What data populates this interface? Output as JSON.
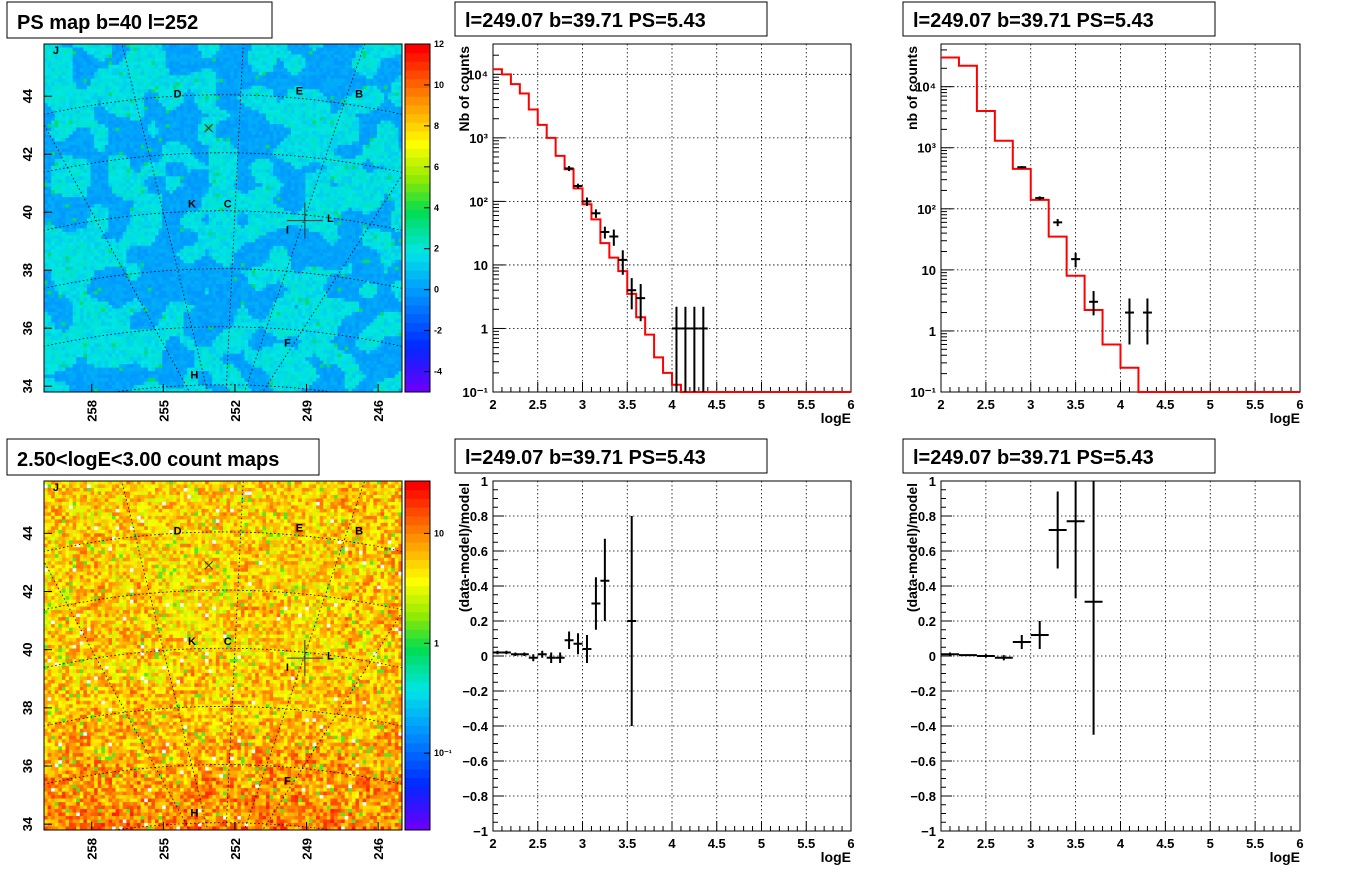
{
  "chart_data": [
    {
      "type": "heatmap",
      "title": "PS map b=40 l=252",
      "xlabel": "",
      "ylabel": "",
      "x_ticks": [
        "258",
        "255",
        "252",
        "249",
        "246"
      ],
      "y_ticks": [
        "34",
        "36",
        "38",
        "40",
        "42",
        "44"
      ],
      "xlim": [
        260,
        245
      ],
      "ylim": [
        33.8,
        45.8
      ],
      "colorbar": {
        "ticks": [
          "-4",
          "-2",
          "0",
          "2",
          "4",
          "6",
          "8",
          "10",
          "12"
        ],
        "range": [
          -5,
          12
        ],
        "scale": "linear"
      },
      "annotations": [
        {
          "label": "J",
          "l": 259.5,
          "b": 45.6
        },
        {
          "label": "D",
          "l": 254.4,
          "b": 44.1
        },
        {
          "label": "E",
          "l": 249.3,
          "b": 44.2
        },
        {
          "label": "B",
          "l": 246.8,
          "b": 44.1
        },
        {
          "label": "K",
          "l": 253.8,
          "b": 40.3
        },
        {
          "label": "C",
          "l": 252.3,
          "b": 40.3
        },
        {
          "label": "I",
          "l": 249.8,
          "b": 39.4
        },
        {
          "label": "L",
          "l": 248.0,
          "b": 39.8
        },
        {
          "label": "F",
          "l": 249.8,
          "b": 35.5
        },
        {
          "label": "H",
          "l": 253.7,
          "b": 34.4
        }
      ],
      "markers": [
        {
          "l": 253.1,
          "b": 42.9
        },
        {
          "l": 249.07,
          "b": 39.71
        }
      ]
    },
    {
      "type": "line",
      "title": "l=249.07 b=39.71 PS=5.43",
      "xlabel": "logE",
      "ylabel": "Nb of counts",
      "xlim": [
        2,
        6
      ],
      "ylim": [
        0.1,
        30000
      ],
      "yscale": "log",
      "grid": true,
      "x_ticks": [
        "2",
        "2.5",
        "3",
        "3.5",
        "4",
        "4.5",
        "5",
        "5.5",
        "6"
      ],
      "y_ticks": [
        "10⁻¹",
        "1",
        "10",
        "10²",
        "10³",
        "10⁴"
      ],
      "series": [
        {
          "style": "step",
          "color": "#ff0000",
          "edges": [
            2,
            2.1,
            2.2,
            2.3,
            2.4,
            2.5,
            2.6,
            2.7,
            2.8,
            2.9,
            3.0,
            3.1,
            3.2,
            3.3,
            3.4,
            3.5,
            3.6,
            3.7,
            3.8,
            3.9,
            4.0,
            4.1,
            4.2,
            4.3,
            4.4,
            6.0
          ],
          "values": [
            12000,
            10000,
            7000,
            5000,
            2800,
            1600,
            1000,
            520,
            320,
            160,
            90,
            52,
            22,
            13,
            8,
            3.5,
            1.5,
            0.8,
            0.35,
            0.2,
            0.13,
            0.1,
            0.1,
            0.1,
            0.1
          ]
        },
        {
          "style": "errorbar",
          "color": "#000000",
          "x": [
            2.85,
            2.95,
            3.05,
            3.15,
            3.25,
            3.35,
            3.45,
            3.55,
            3.65,
            4.05,
            4.15,
            4.25,
            4.35
          ],
          "y": [
            330,
            175,
            100,
            65,
            33,
            28,
            12,
            4,
            3,
            1,
            1,
            1,
            1
          ],
          "ylo": [
            300,
            160,
            85,
            55,
            26,
            20,
            7,
            2,
            1.3,
            0.1,
            0.1,
            0.1,
            0.1
          ],
          "yhi": [
            360,
            190,
            115,
            75,
            40,
            36,
            17,
            6.2,
            5,
            2.2,
            2.2,
            2.2,
            2.2
          ]
        }
      ]
    },
    {
      "type": "line",
      "title": "l=249.07 b=39.71 PS=5.43",
      "xlabel": "logE",
      "ylabel": "nb of counts",
      "xlim": [
        2,
        6
      ],
      "ylim": [
        0.1,
        50000
      ],
      "yscale": "log",
      "grid": true,
      "x_ticks": [
        "2",
        "2.5",
        "3",
        "3.5",
        "4",
        "4.5",
        "5",
        "5.5",
        "6"
      ],
      "y_ticks": [
        "10⁻¹",
        "1",
        "10",
        "10²",
        "10³",
        "10⁴"
      ],
      "series": [
        {
          "style": "step",
          "color": "#ff0000",
          "edges": [
            2,
            2.2,
            2.4,
            2.6,
            2.8,
            3.0,
            3.2,
            3.4,
            3.6,
            3.8,
            4.0,
            4.2,
            6.0
          ],
          "values": [
            30000,
            22000,
            4000,
            1300,
            450,
            140,
            35,
            8,
            2.2,
            0.6,
            0.25,
            0.1
          ]
        },
        {
          "style": "errorbar",
          "color": "#000000",
          "x": [
            2.9,
            3.1,
            3.3,
            3.5,
            3.7,
            4.1,
            4.3
          ],
          "y": [
            480,
            150,
            60,
            15,
            3,
            2,
            2
          ],
          "ylo": [
            460,
            140,
            52,
            11,
            1.8,
            0.6,
            0.6
          ],
          "yhi": [
            500,
            160,
            68,
            19,
            4.5,
            3.4,
            3.4
          ]
        }
      ]
    },
    {
      "type": "heatmap",
      "title": "2.50<logE<3.00 count maps",
      "xlabel": "",
      "ylabel": "",
      "x_ticks": [
        "258",
        "255",
        "252",
        "249",
        "246"
      ],
      "y_ticks": [
        "34",
        "36",
        "38",
        "40",
        "42",
        "44"
      ],
      "xlim": [
        260,
        245
      ],
      "ylim": [
        33.8,
        45.8
      ],
      "colorbar": {
        "ticks": [
          "10⁻¹",
          "1",
          "10"
        ],
        "range": [
          0.02,
          30
        ],
        "scale": "log"
      },
      "annotations": [
        {
          "label": "J",
          "l": 259.5,
          "b": 45.6
        },
        {
          "label": "D",
          "l": 254.4,
          "b": 44.1
        },
        {
          "label": "E",
          "l": 249.3,
          "b": 44.2
        },
        {
          "label": "B",
          "l": 246.8,
          "b": 44.1
        },
        {
          "label": "K",
          "l": 253.8,
          "b": 40.3
        },
        {
          "label": "C",
          "l": 252.3,
          "b": 40.3
        },
        {
          "label": "I",
          "l": 249.8,
          "b": 39.4
        },
        {
          "label": "L",
          "l": 248.0,
          "b": 39.8
        },
        {
          "label": "F",
          "l": 249.8,
          "b": 35.5
        },
        {
          "label": "H",
          "l": 253.7,
          "b": 34.4
        }
      ],
      "markers": [
        {
          "l": 253.1,
          "b": 42.9
        },
        {
          "l": 249.07,
          "b": 39.71
        }
      ]
    },
    {
      "type": "scatter",
      "title": "l=249.07 b=39.71 PS=5.43",
      "xlabel": "logE",
      "ylabel": "(data-model)/model",
      "xlim": [
        2,
        6
      ],
      "ylim": [
        -1,
        1
      ],
      "grid": true,
      "x_ticks": [
        "2",
        "2.5",
        "3",
        "3.5",
        "4",
        "4.5",
        "5",
        "5.5",
        "6"
      ],
      "y_ticks": [
        "−1",
        "−0.8",
        "−0.6",
        "−0.4",
        "−0.2",
        "0",
        "0.2",
        "0.4",
        "0.6",
        "0.8",
        "1"
      ],
      "series": [
        {
          "style": "errorbar",
          "color": "#000000",
          "xerr": 0.05,
          "x": [
            2.05,
            2.15,
            2.25,
            2.35,
            2.45,
            2.55,
            2.65,
            2.75,
            2.85,
            2.95,
            3.05,
            3.15,
            3.25,
            3.55
          ],
          "y": [
            0.02,
            0.02,
            0.01,
            0.01,
            -0.01,
            0.01,
            -0.01,
            -0.01,
            0.09,
            0.07,
            0.04,
            0.3,
            0.43,
            0.2
          ],
          "ylo": [
            0.01,
            0.01,
            0.0,
            0.0,
            -0.03,
            -0.01,
            -0.04,
            -0.04,
            0.04,
            0.01,
            -0.04,
            0.15,
            0.2,
            -0.4
          ],
          "yhi": [
            0.03,
            0.03,
            0.02,
            0.02,
            0.01,
            0.03,
            0.02,
            0.02,
            0.14,
            0.13,
            0.12,
            0.45,
            0.67,
            0.8
          ]
        }
      ]
    },
    {
      "type": "scatter",
      "title": "l=249.07 b=39.71 PS=5.43",
      "xlabel": "logE",
      "ylabel": "(data-model)/model",
      "xlim": [
        2,
        6
      ],
      "ylim": [
        -1,
        1
      ],
      "grid": true,
      "x_ticks": [
        "2",
        "2.5",
        "3",
        "3.5",
        "4",
        "4.5",
        "5",
        "5.5",
        "6"
      ],
      "y_ticks": [
        "−1",
        "−0.8",
        "−0.6",
        "−0.4",
        "−0.2",
        "0",
        "0.2",
        "0.4",
        "0.6",
        "0.8",
        "1"
      ],
      "series": [
        {
          "style": "errorbar",
          "color": "#000000",
          "xerr": 0.1,
          "x": [
            2.1,
            2.3,
            2.5,
            2.7,
            2.9,
            3.1,
            3.3,
            3.5,
            3.7
          ],
          "y": [
            0.01,
            0.005,
            0.0,
            -0.01,
            0.08,
            0.12,
            0.72,
            0.77,
            0.31
          ],
          "ylo": [
            0.0,
            0.0,
            -0.01,
            -0.025,
            0.04,
            0.04,
            0.5,
            0.33,
            -0.45
          ],
          "yhi": [
            0.02,
            0.01,
            0.01,
            0.005,
            0.12,
            0.2,
            0.94,
            1.0,
            1.0
          ]
        }
      ]
    }
  ]
}
